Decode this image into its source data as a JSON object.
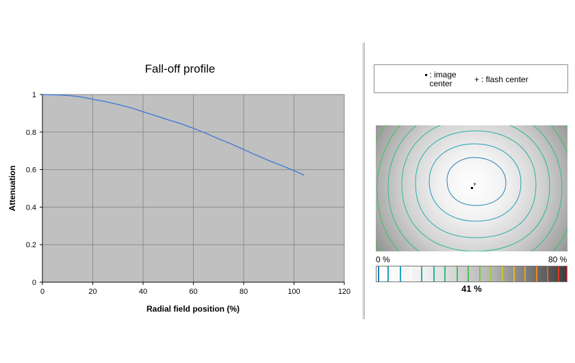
{
  "chart_data": {
    "type": "line",
    "title": "Fall-off profile",
    "xlabel": "Radial field position (%)",
    "ylabel": "Attenuation",
    "xlim": [
      0,
      120
    ],
    "ylim": [
      0,
      1
    ],
    "x_ticks": [
      "0",
      "20",
      "40",
      "60",
      "80",
      "100",
      "120"
    ],
    "y_ticks": [
      "0",
      "0.2",
      "0.4",
      "0.6",
      "0.8",
      "1"
    ],
    "grid": true,
    "background": "#c0c0c0",
    "series": [
      {
        "color": "#4a7fd4",
        "x": [
          0,
          5,
          10,
          15,
          20,
          25,
          30,
          35,
          40,
          45,
          50,
          55,
          60,
          65,
          70,
          75,
          80,
          85,
          90,
          95,
          100,
          104
        ],
        "y": [
          1.0,
          0.998,
          0.995,
          0.988,
          0.975,
          0.962,
          0.947,
          0.93,
          0.908,
          0.887,
          0.865,
          0.845,
          0.82,
          0.793,
          0.764,
          0.737,
          0.707,
          0.677,
          0.648,
          0.622,
          0.594,
          0.57
        ]
      }
    ]
  },
  "legend": {
    "image_center_marker": "▪",
    "image_center_label": ": image center",
    "flash_center_marker": "+",
    "flash_center_label": ": flash center"
  },
  "scale": {
    "min_label": "0 %",
    "max_label": "80 %",
    "value_label": "41 %",
    "value": 41
  }
}
